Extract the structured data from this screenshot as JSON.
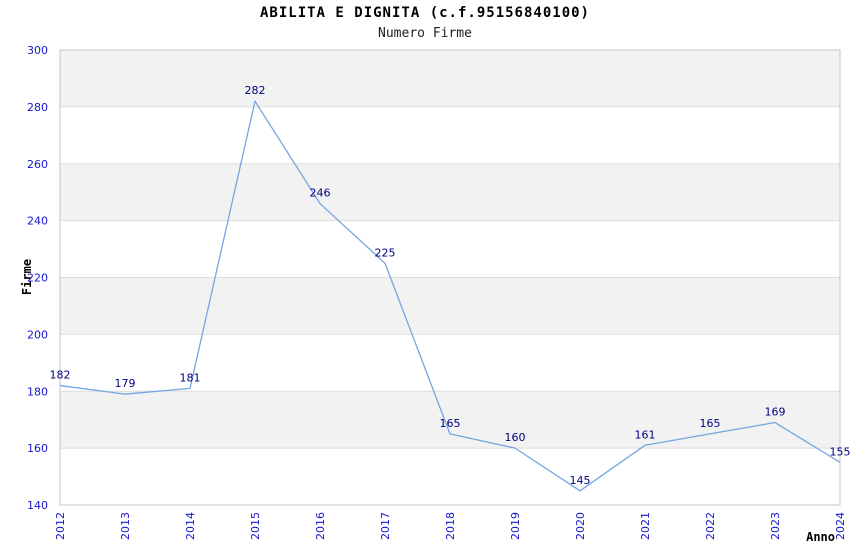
{
  "title": "ABILITA E DIGNITA (c.f.95156840100)",
  "subtitle": "Numero Firme",
  "chart_data": {
    "type": "line",
    "x": [
      2012,
      2013,
      2014,
      2015,
      2016,
      2017,
      2018,
      2019,
      2020,
      2021,
      2022,
      2023,
      2024
    ],
    "values": [
      182,
      179,
      181,
      282,
      246,
      225,
      165,
      160,
      145,
      161,
      165,
      169,
      155
    ],
    "series_name": "Numero Firme",
    "title": "ABILITA E DIGNITA (c.f.95156840100)",
    "subtitle": "Numero Firme",
    "xlabel": "Anno",
    "ylabel": "Firme",
    "ylim": [
      140,
      300
    ],
    "ytick_step": 20,
    "yticks": [
      140,
      160,
      180,
      200,
      220,
      240,
      260,
      280,
      300
    ],
    "grid": "horizontal gridlines with alternating shaded bands",
    "legend_position": "none",
    "point_labels_visible": true
  },
  "colors": {
    "line": "#75a5e3",
    "tick_label": "#1616cd",
    "point_label": "#000080",
    "band": "#f2f2f2",
    "gridline": "#dedede",
    "border": "#c6c6c6",
    "title_color": "#000000",
    "background": "#ffffff"
  }
}
